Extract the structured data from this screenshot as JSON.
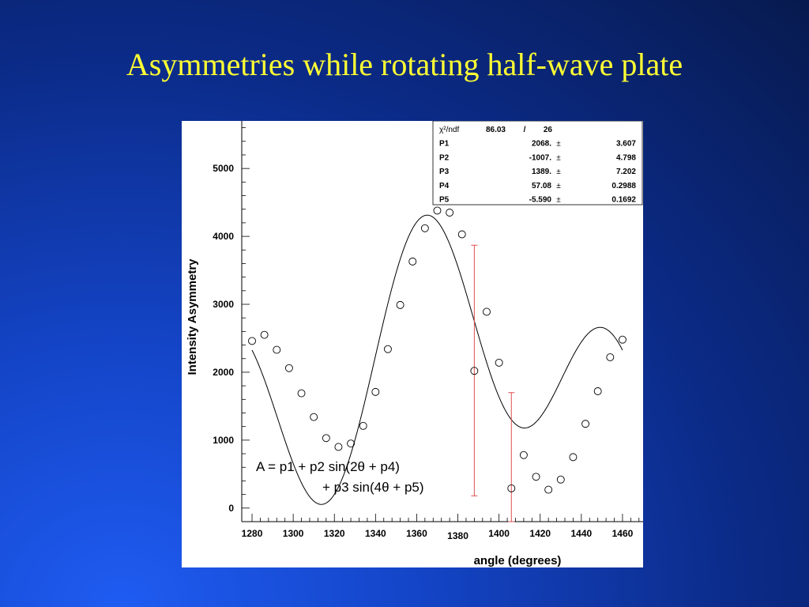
{
  "slide": {
    "title": "Asymmetries while rotating half-wave plate"
  },
  "formula": {
    "line1": "A = p1 +  p2 sin(2θ + p4)",
    "line2": "+ p3 sin(4θ + p5)"
  },
  "stats_box": {
    "rows": [
      {
        "label": "χ²/ndf",
        "value": "86.03",
        "sep": "/",
        "err": "26"
      },
      {
        "label": "P1",
        "value": "2068.",
        "sep": "±",
        "err": "3.607"
      },
      {
        "label": "P2",
        "value": "-1007.",
        "sep": "±",
        "err": "4.798"
      },
      {
        "label": "P3",
        "value": "1389.",
        "sep": "±",
        "err": "7.202"
      },
      {
        "label": "P4",
        "value": "57.08",
        "sep": "±",
        "err": "0.2988"
      },
      {
        "label": "P5",
        "value": "-5.590",
        "sep": "±",
        "err": "0.1692"
      }
    ]
  },
  "chart_data": {
    "type": "scatter",
    "xlabel": "angle (degrees)",
    "ylabel": "Intensity Asymmetry",
    "xlim": [
      1275,
      1470
    ],
    "ylim": [
      -200,
      5700
    ],
    "x_ticks": [
      1280,
      1300,
      1320,
      1340,
      1360,
      1380,
      1400,
      1420,
      1440,
      1460
    ],
    "y_ticks": [
      0,
      1000,
      2000,
      3000,
      4000,
      5000
    ],
    "grid": false,
    "points": {
      "x": [
        1280,
        1286,
        1292,
        1298,
        1304,
        1310,
        1316,
        1322,
        1328,
        1334,
        1340,
        1346,
        1352,
        1358,
        1364,
        1370,
        1376,
        1382,
        1388,
        1394,
        1400,
        1406,
        1412,
        1418,
        1424,
        1430,
        1436,
        1442,
        1448,
        1454,
        1460
      ],
      "y": [
        2460,
        2550,
        2330,
        2060,
        1690,
        1340,
        1030,
        900,
        950,
        1210,
        1710,
        2340,
        2990,
        3630,
        4120,
        4380,
        4350,
        4030,
        2020,
        2890,
        2140,
        290,
        780,
        460,
        270,
        420,
        750,
        1240,
        1720,
        2220,
        2480
      ]
    },
    "error_bars": [
      {
        "x": 1388,
        "y_low": 180,
        "y_high": 3870
      },
      {
        "x": 1406,
        "y_low": -200,
        "y_high": 1700
      }
    ],
    "fit_curve": {
      "function": "p1 + p2*sin(2θ + p4) + p3*sin(4θ + p5)",
      "x_range": [
        1280,
        1460
      ]
    }
  },
  "colors": {
    "title": "#ffff33",
    "error_bar": "#e05050",
    "marker": "#000000",
    "fit_line": "#000000"
  }
}
